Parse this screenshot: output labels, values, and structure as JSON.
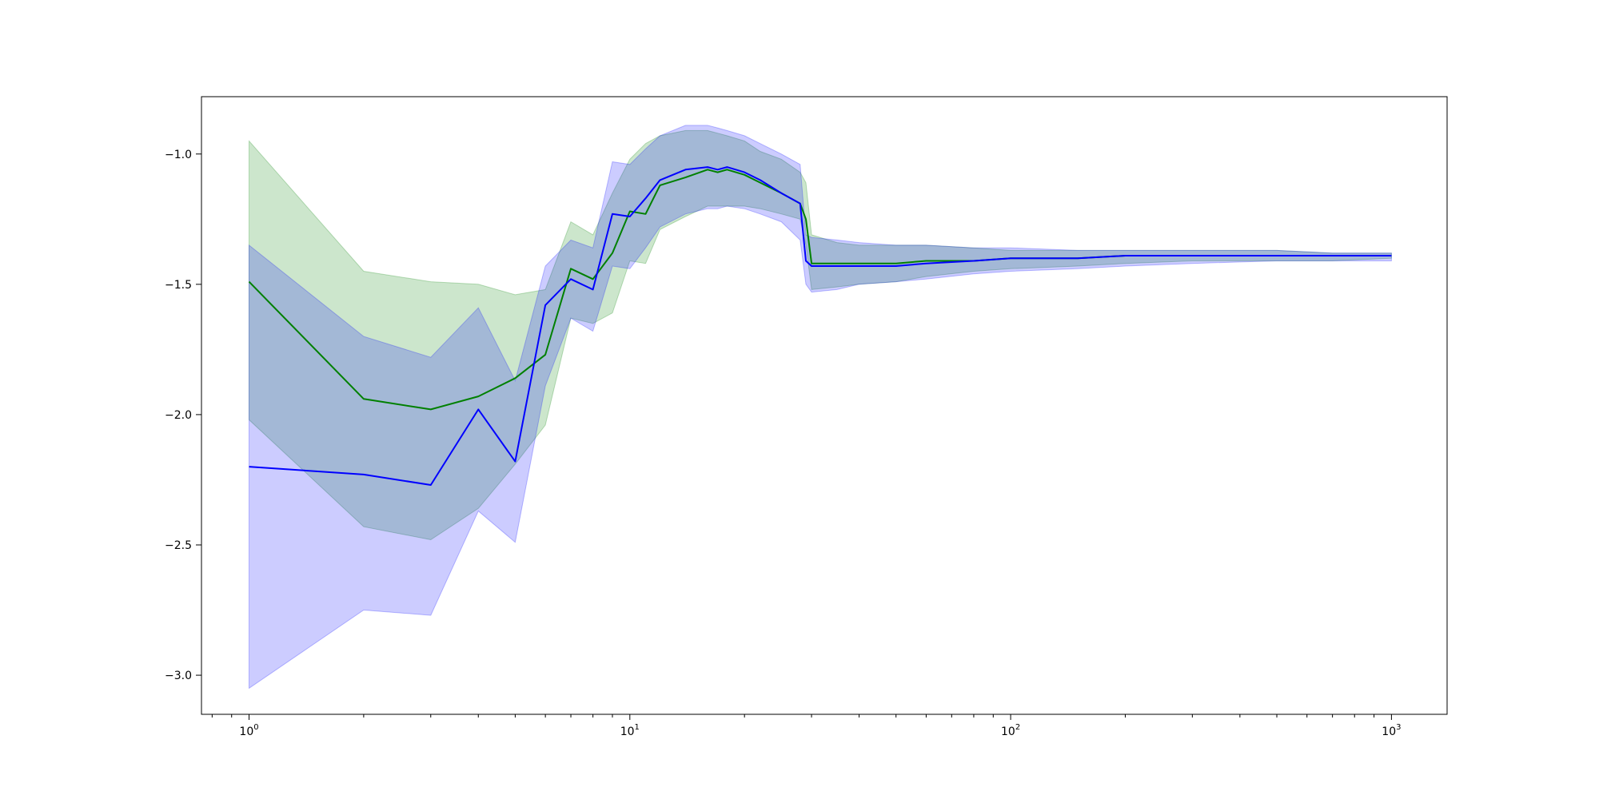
{
  "chart_data": {
    "type": "line",
    "title": "",
    "xlabel": "",
    "ylabel": "",
    "x_scale": "log",
    "xlim": [
      0.75,
      1400
    ],
    "ylim": [
      -3.15,
      -0.78
    ],
    "grid": false,
    "legend": "none",
    "x_ticks": [
      {
        "value": 1,
        "base": "10",
        "exp": "0"
      },
      {
        "value": 10,
        "base": "10",
        "exp": "1"
      },
      {
        "value": 100,
        "base": "10",
        "exp": "2"
      },
      {
        "value": 1000,
        "base": "10",
        "exp": "3"
      }
    ],
    "y_ticks": [
      {
        "value": -1.0,
        "label": "−1.0"
      },
      {
        "value": -1.5,
        "label": "−1.5"
      },
      {
        "value": -2.0,
        "label": "−2.0"
      },
      {
        "value": -2.5,
        "label": "−2.5"
      },
      {
        "value": -3.0,
        "label": "−3.0"
      }
    ],
    "series": [
      {
        "color": "#008000",
        "fill": "#008000",
        "fill_opacity": 0.2,
        "x": [
          1,
          2,
          3,
          4,
          5,
          6,
          7,
          8,
          9,
          10,
          11,
          12,
          14,
          16,
          17,
          18,
          20,
          22,
          25,
          28,
          29,
          30,
          35,
          40,
          50,
          60,
          80,
          100,
          150,
          200,
          300,
          500,
          700,
          1000
        ],
        "y": [
          -1.49,
          -1.94,
          -1.98,
          -1.93,
          -1.86,
          -1.77,
          -1.44,
          -1.48,
          -1.38,
          -1.22,
          -1.23,
          -1.12,
          -1.09,
          -1.06,
          -1.07,
          -1.06,
          -1.08,
          -1.11,
          -1.15,
          -1.19,
          -1.25,
          -1.42,
          -1.42,
          -1.42,
          -1.42,
          -1.41,
          -1.41,
          -1.4,
          -1.4,
          -1.39,
          -1.39,
          -1.39,
          -1.39,
          -1.39
        ],
        "upper": [
          -0.95,
          -1.45,
          -1.49,
          -1.5,
          -1.54,
          -1.52,
          -1.26,
          -1.31,
          -1.15,
          -1.02,
          -0.96,
          -0.93,
          -0.91,
          -0.91,
          -0.92,
          -0.93,
          -0.95,
          -0.99,
          -1.02,
          -1.07,
          -1.11,
          -1.31,
          -1.34,
          -1.35,
          -1.35,
          -1.35,
          -1.36,
          -1.37,
          -1.37,
          -1.37,
          -1.37,
          -1.37,
          -1.38,
          -1.38
        ],
        "lower": [
          -2.02,
          -2.43,
          -2.48,
          -2.36,
          -2.19,
          -2.04,
          -1.63,
          -1.65,
          -1.61,
          -1.41,
          -1.42,
          -1.29,
          -1.24,
          -1.2,
          -1.2,
          -1.2,
          -1.2,
          -1.21,
          -1.23,
          -1.25,
          -1.35,
          -1.52,
          -1.51,
          -1.5,
          -1.49,
          -1.47,
          -1.45,
          -1.44,
          -1.43,
          -1.42,
          -1.41,
          -1.41,
          -1.41,
          -1.4
        ]
      },
      {
        "color": "#0000ff",
        "fill": "#0000ff",
        "fill_opacity": 0.2,
        "x": [
          1,
          2,
          3,
          4,
          5,
          6,
          7,
          8,
          9,
          10,
          11,
          12,
          14,
          16,
          17,
          18,
          20,
          22,
          25,
          28,
          29,
          30,
          35,
          40,
          50,
          60,
          80,
          100,
          150,
          200,
          300,
          500,
          700,
          1000
        ],
        "y": [
          -2.2,
          -2.23,
          -2.27,
          -1.98,
          -2.18,
          -1.58,
          -1.48,
          -1.52,
          -1.23,
          -1.24,
          -1.17,
          -1.1,
          -1.06,
          -1.05,
          -1.06,
          -1.05,
          -1.07,
          -1.1,
          -1.15,
          -1.19,
          -1.41,
          -1.43,
          -1.43,
          -1.43,
          -1.43,
          -1.42,
          -1.41,
          -1.4,
          -1.4,
          -1.39,
          -1.39,
          -1.39,
          -1.39,
          -1.39
        ],
        "upper": [
          -1.35,
          -1.7,
          -1.78,
          -1.59,
          -1.87,
          -1.43,
          -1.33,
          -1.36,
          -1.03,
          -1.04,
          -0.98,
          -0.93,
          -0.89,
          -0.89,
          -0.9,
          -0.91,
          -0.93,
          -0.96,
          -1.0,
          -1.04,
          -1.31,
          -1.32,
          -1.33,
          -1.34,
          -1.35,
          -1.35,
          -1.36,
          -1.36,
          -1.37,
          -1.37,
          -1.37,
          -1.37,
          -1.38,
          -1.38
        ],
        "lower": [
          -3.05,
          -2.75,
          -2.77,
          -2.37,
          -2.49,
          -1.89,
          -1.63,
          -1.68,
          -1.43,
          -1.44,
          -1.36,
          -1.28,
          -1.23,
          -1.21,
          -1.21,
          -1.2,
          -1.21,
          -1.23,
          -1.26,
          -1.33,
          -1.5,
          -1.53,
          -1.52,
          -1.5,
          -1.49,
          -1.48,
          -1.46,
          -1.45,
          -1.44,
          -1.43,
          -1.42,
          -1.41,
          -1.41,
          -1.41
        ]
      }
    ]
  }
}
